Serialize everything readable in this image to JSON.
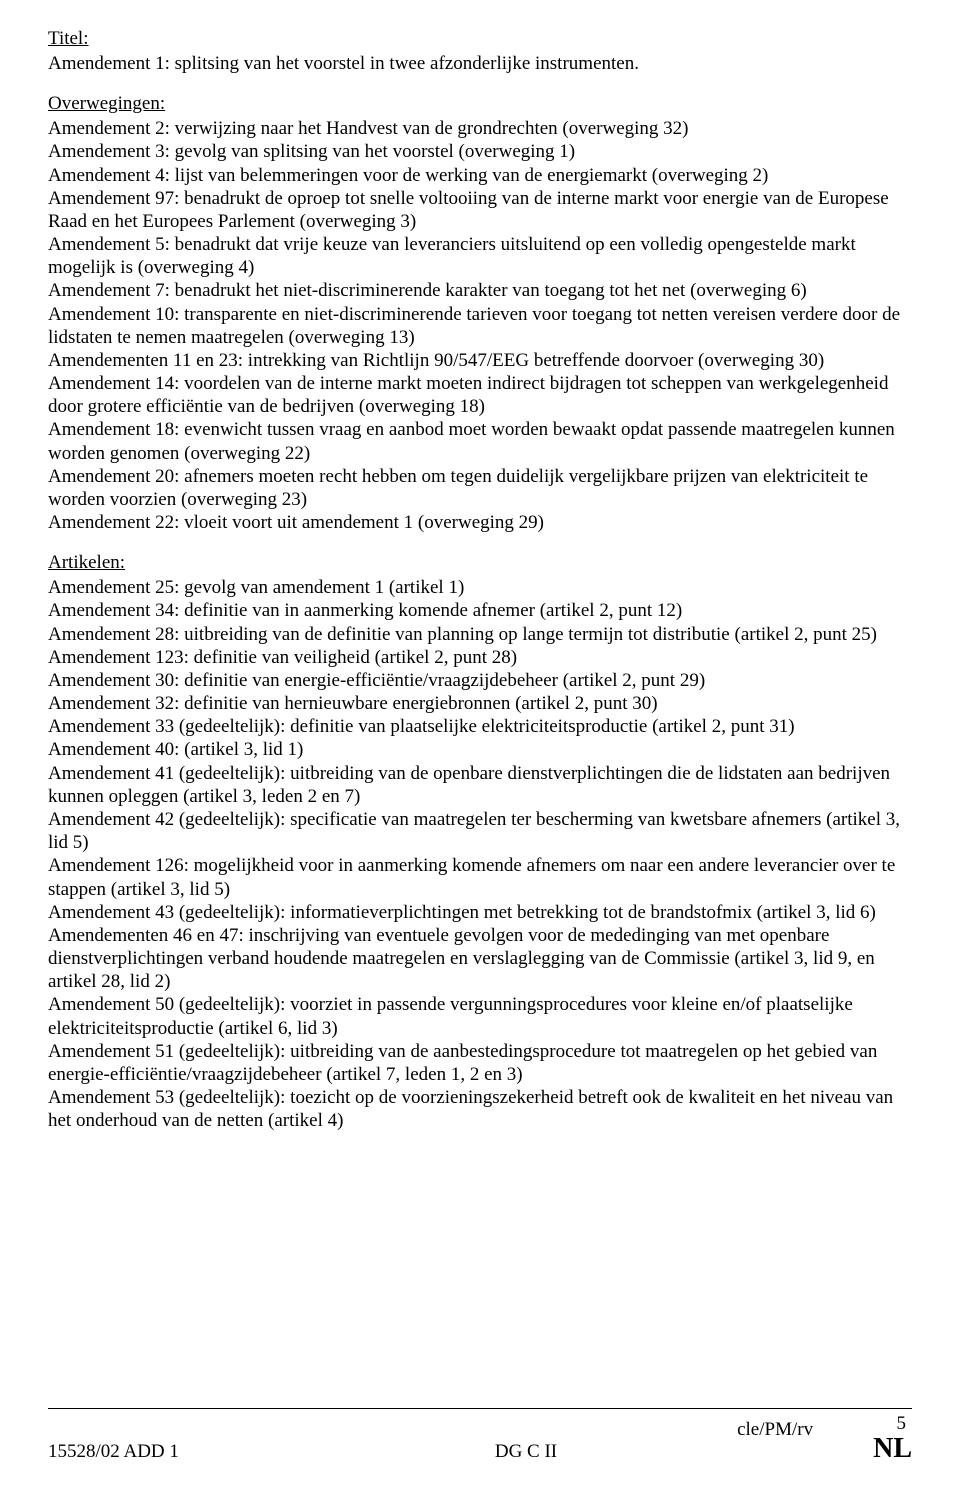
{
  "titel": {
    "heading": "Titel:",
    "lines": [
      "Amendement 1: splitsing van het voorstel in twee afzonderlijke instrumenten."
    ]
  },
  "overwegingen": {
    "heading": "Overwegingen:",
    "lines": [
      "Amendement 2: verwijzing naar het Handvest van de grondrechten (overweging 32)",
      "Amendement 3: gevolg van splitsing van het voorstel (overweging 1)",
      "Amendement 4: lijst van belemmeringen voor de werking van de energiemarkt (overweging 2)",
      "Amendement 97: benadrukt de oproep tot snelle voltooiing van de interne markt voor energie van de Europese Raad en het Europees Parlement (overweging 3)",
      "Amendement 5: benadrukt dat vrije keuze van leveranciers uitsluitend op een volledig opengestelde markt mogelijk is (overweging 4)",
      "Amendement 7: benadrukt het niet-discriminerende karakter van toegang tot het net (overweging 6)",
      "Amendement 10: transparente en niet-discriminerende tarieven voor toegang tot netten vereisen verdere door de lidstaten te nemen maatregelen (overweging 13)",
      "Amendementen 11 en 23: intrekking van Richtlijn 90/547/EEG betreffende doorvoer (overweging 30)",
      "Amendement 14: voordelen van de interne markt moeten indirect bijdragen tot scheppen van werkgelegenheid door grotere efficiëntie van de bedrijven (overweging 18)",
      "Amendement 18: evenwicht tussen vraag en aanbod moet worden bewaakt opdat passende maatregelen kunnen worden genomen (overweging 22)",
      "Amendement 20: afnemers moeten recht hebben om tegen duidelijk vergelijkbare prijzen van elektriciteit te worden voorzien (overweging 23)",
      "Amendement 22: vloeit voort uit amendement 1 (overweging 29)"
    ]
  },
  "artikelen": {
    "heading": "Artikelen:",
    "lines": [
      "Amendement 25: gevolg van amendement 1 (artikel 1)",
      "Amendement 34: definitie van in aanmerking komende afnemer (artikel 2, punt 12)",
      "Amendement 28: uitbreiding van de definitie van planning op lange termijn tot distributie (artikel 2, punt 25)",
      "Amendement 123: definitie van veiligheid (artikel 2, punt 28)",
      "Amendement 30: definitie van energie-efficiëntie/vraagzijdebeheer (artikel 2, punt 29)",
      "Amendement 32: definitie van hernieuwbare energiebronnen (artikel 2, punt 30)",
      "Amendement 33 (gedeeltelijk): definitie van plaatselijke elektriciteitsproductie (artikel 2, punt 31)",
      "Amendement 40: (artikel 3, lid 1)",
      "Amendement 41 (gedeeltelijk): uitbreiding van de openbare dienstverplichtingen die de lidstaten aan bedrijven kunnen opleggen (artikel 3, leden 2 en 7)",
      "Amendement 42 (gedeeltelijk): specificatie van maatregelen ter bescherming van kwetsbare afnemers (artikel 3, lid 5)",
      "Amendement 126: mogelijkheid voor in aanmerking komende afnemers om naar een andere leverancier over te stappen (artikel 3, lid 5)",
      "Amendement 43 (gedeeltelijk): informatieverplichtingen met betrekking tot de brandstofmix (artikel 3, lid 6)",
      "Amendementen 46 en 47: inschrijving van eventuele gevolgen voor de mededinging van met openbare dienstverplichtingen verband houdende maatregelen en verslaglegging van de Commissie (artikel 3, lid 9, en artikel 28, lid 2)",
      "Amendement 50 (gedeeltelijk): voorziet in passende vergunningsprocedures voor kleine en/of plaatselijke elektriciteitsproductie (artikel 6, lid 3)",
      "Amendement 51 (gedeeltelijk): uitbreiding van de aanbestedingsprocedure tot maatregelen op het gebied van energie-efficiëntie/vraagzijdebeheer (artikel 7, leden 1, 2 en 3)",
      "Amendement 53 (gedeeltelijk): toezicht op de voorzieningszekerheid betreft ook de kwaliteit en het niveau van het onderhoud van de netten (artikel 4)"
    ]
  },
  "footer": {
    "left": "15528/02 ADD 1",
    "center": "DG C II",
    "ref": "cle/PM/rv",
    "page": "5",
    "lang": "NL"
  }
}
